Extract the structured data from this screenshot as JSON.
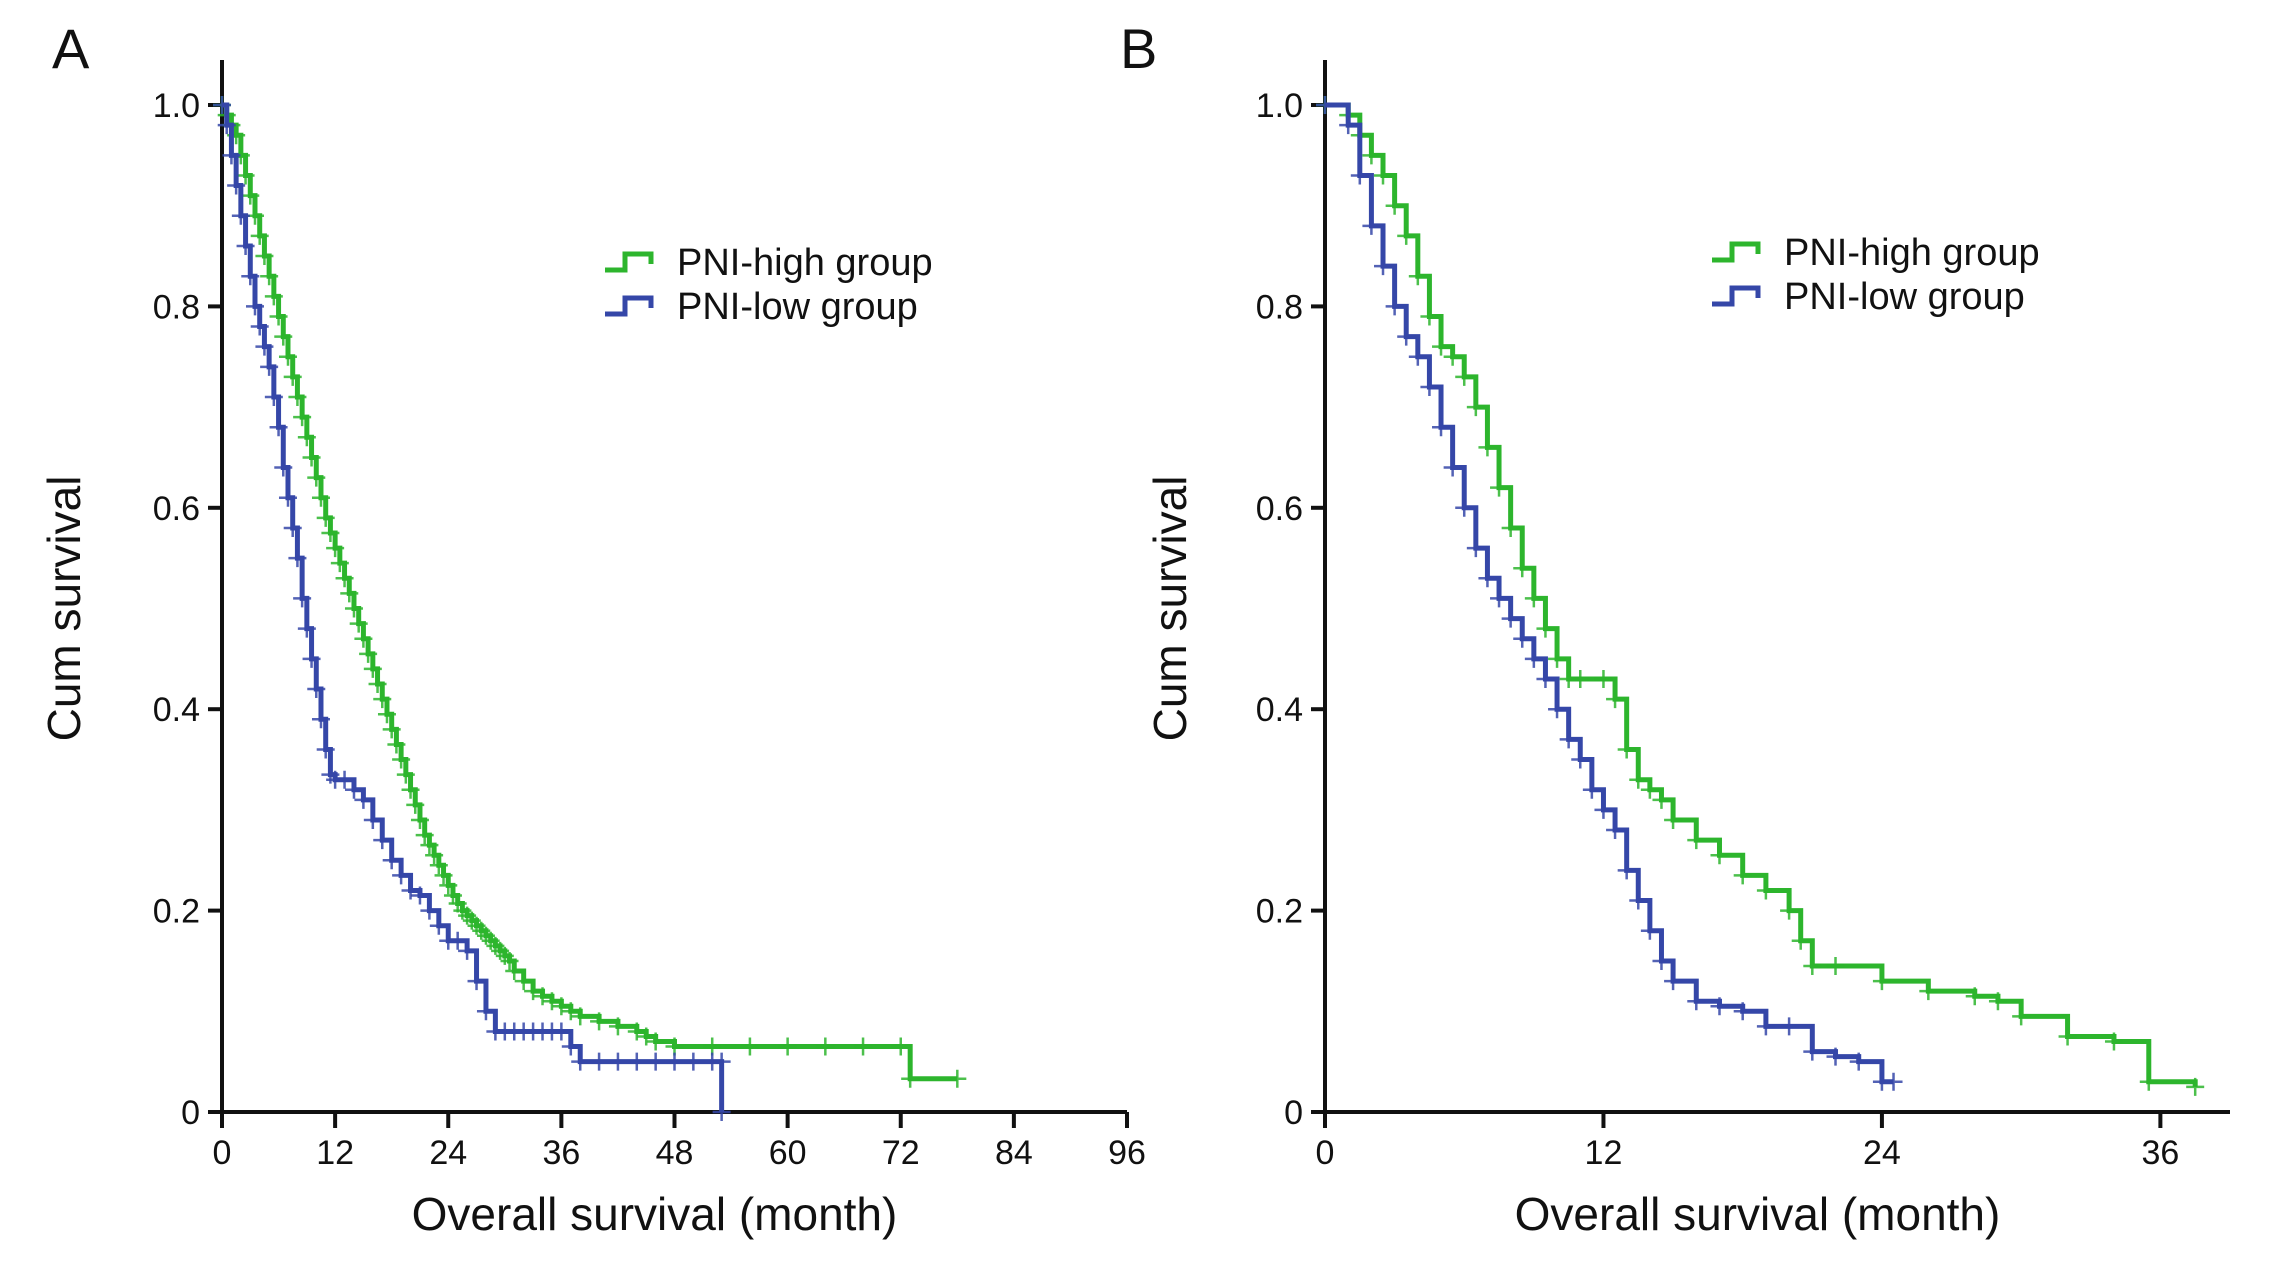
{
  "colors": {
    "high": "#2db52d",
    "low": "#3547a8",
    "axis": "#111111"
  },
  "legend": {
    "high": "PNI-high group",
    "low": "PNI-low group"
  },
  "chart_data": [
    {
      "type": "line",
      "panel_label": "A",
      "xlabel": "Overall survival (month)",
      "ylabel": "Cum survival",
      "xlim": [
        0,
        96
      ],
      "ylim": [
        0,
        1.0
      ],
      "xticks": [
        "0",
        "12",
        "24",
        "36",
        "48",
        "60",
        "72",
        "84",
        "96"
      ],
      "yticks": [
        "0",
        "0.2",
        "0.4",
        "0.6",
        "0.8",
        "1.0"
      ],
      "legend_position": "top-right",
      "series": [
        {
          "name": "PNI-high group",
          "x": [
            0,
            0.5,
            1,
            1.5,
            2,
            2.5,
            3,
            3.5,
            4,
            4.5,
            5,
            5.5,
            6,
            6.5,
            7,
            7.5,
            8,
            8.5,
            9,
            9.5,
            10,
            10.5,
            11,
            11.5,
            12,
            12.5,
            13,
            13.5,
            14,
            14.5,
            15,
            15.5,
            16,
            16.5,
            17,
            17.5,
            18,
            18.5,
            19,
            19.5,
            20,
            20.5,
            21,
            21.5,
            22,
            22.5,
            23,
            23.5,
            24,
            24.5,
            25,
            25.5,
            26,
            26.5,
            27,
            27.5,
            28,
            28.5,
            29,
            29.5,
            30,
            30.5,
            31,
            32,
            33,
            34,
            35,
            36,
            37,
            38,
            40,
            42,
            44,
            45,
            46,
            48,
            52,
            56,
            60,
            64,
            68,
            72,
            73,
            78
          ],
          "y": [
            1.0,
            0.99,
            0.98,
            0.97,
            0.95,
            0.93,
            0.91,
            0.89,
            0.87,
            0.85,
            0.83,
            0.81,
            0.79,
            0.77,
            0.75,
            0.73,
            0.71,
            0.69,
            0.67,
            0.65,
            0.63,
            0.61,
            0.59,
            0.575,
            0.56,
            0.545,
            0.53,
            0.515,
            0.5,
            0.485,
            0.47,
            0.455,
            0.44,
            0.425,
            0.41,
            0.395,
            0.38,
            0.365,
            0.35,
            0.335,
            0.32,
            0.305,
            0.29,
            0.275,
            0.265,
            0.255,
            0.245,
            0.235,
            0.225,
            0.215,
            0.207,
            0.2,
            0.195,
            0.19,
            0.185,
            0.18,
            0.175,
            0.17,
            0.165,
            0.16,
            0.155,
            0.15,
            0.14,
            0.13,
            0.12,
            0.115,
            0.11,
            0.105,
            0.1,
            0.095,
            0.09,
            0.085,
            0.08,
            0.075,
            0.07,
            0.065,
            0.065,
            0.065,
            0.065,
            0.065,
            0.065,
            0.065,
            0.033,
            0.033
          ]
        },
        {
          "name": "PNI-low group",
          "x": [
            0,
            0.5,
            1,
            1.5,
            2,
            2.5,
            3,
            3.5,
            4,
            4.5,
            5,
            5.5,
            6,
            6.5,
            7,
            7.5,
            8,
            8.5,
            9,
            9.5,
            10,
            10.5,
            11,
            11.5,
            12,
            13,
            14,
            15,
            16,
            17,
            18,
            19,
            20,
            21,
            22,
            23,
            24,
            25,
            26,
            27,
            28,
            29,
            30,
            31,
            32,
            33,
            34,
            35,
            36,
            37,
            38,
            40,
            42,
            44,
            46,
            48,
            50,
            52,
            53,
            53
          ],
          "y": [
            1.0,
            0.98,
            0.95,
            0.92,
            0.89,
            0.86,
            0.83,
            0.8,
            0.78,
            0.76,
            0.74,
            0.71,
            0.68,
            0.64,
            0.61,
            0.58,
            0.55,
            0.51,
            0.48,
            0.45,
            0.42,
            0.39,
            0.36,
            0.335,
            0.33,
            0.33,
            0.32,
            0.31,
            0.29,
            0.27,
            0.25,
            0.235,
            0.22,
            0.215,
            0.2,
            0.185,
            0.17,
            0.17,
            0.16,
            0.13,
            0.1,
            0.08,
            0.08,
            0.08,
            0.08,
            0.08,
            0.08,
            0.08,
            0.08,
            0.065,
            0.05,
            0.05,
            0.05,
            0.05,
            0.05,
            0.05,
            0.05,
            0.05,
            0.05,
            0.0
          ]
        }
      ]
    },
    {
      "type": "line",
      "panel_label": "B",
      "xlabel": "Overall survival (month)",
      "ylabel": "Cum survival",
      "xlim": [
        0,
        39
      ],
      "ylim": [
        0,
        1.0
      ],
      "xticks": [
        "0",
        "12",
        "24",
        "36"
      ],
      "xtick_values": [
        0,
        12,
        24,
        36
      ],
      "yticks": [
        "0",
        "0.2",
        "0.4",
        "0.6",
        "0.8",
        "1.0"
      ],
      "legend_position": "top-right",
      "series": [
        {
          "name": "PNI-high group",
          "x": [
            0,
            1,
            1.5,
            2,
            2.5,
            3,
            3.5,
            4,
            4.5,
            5,
            5.5,
            6,
            6.5,
            7,
            7.5,
            8,
            8.5,
            9,
            9.5,
            10,
            10.5,
            11,
            12,
            12.5,
            13,
            13.5,
            14,
            14.5,
            15,
            16,
            17,
            18,
            19,
            20,
            20.5,
            21,
            22,
            24,
            26,
            28,
            29,
            30,
            32,
            34,
            35.5,
            37.5
          ],
          "y": [
            1.0,
            0.99,
            0.97,
            0.95,
            0.93,
            0.9,
            0.87,
            0.83,
            0.79,
            0.76,
            0.75,
            0.73,
            0.7,
            0.66,
            0.62,
            0.58,
            0.54,
            0.51,
            0.48,
            0.45,
            0.43,
            0.43,
            0.43,
            0.41,
            0.36,
            0.33,
            0.32,
            0.31,
            0.29,
            0.27,
            0.255,
            0.235,
            0.22,
            0.2,
            0.17,
            0.145,
            0.145,
            0.13,
            0.12,
            0.115,
            0.11,
            0.095,
            0.075,
            0.07,
            0.03,
            0.025
          ]
        },
        {
          "name": "PNI-low group",
          "x": [
            0,
            1,
            1.5,
            2,
            2.5,
            3,
            3.5,
            4,
            4.5,
            5,
            5.5,
            6,
            6.5,
            7,
            7.5,
            8,
            8.5,
            9,
            9.5,
            10,
            10.5,
            11,
            11.5,
            12,
            12.5,
            13,
            13.5,
            14,
            14.5,
            15,
            16,
            17,
            18,
            19,
            20,
            21,
            22,
            23,
            24,
            24.5
          ],
          "y": [
            1.0,
            0.98,
            0.93,
            0.88,
            0.84,
            0.8,
            0.77,
            0.75,
            0.72,
            0.68,
            0.64,
            0.6,
            0.56,
            0.53,
            0.51,
            0.49,
            0.47,
            0.45,
            0.43,
            0.4,
            0.37,
            0.35,
            0.32,
            0.3,
            0.28,
            0.24,
            0.21,
            0.18,
            0.15,
            0.13,
            0.11,
            0.105,
            0.1,
            0.085,
            0.085,
            0.06,
            0.055,
            0.05,
            0.03,
            0.03
          ]
        }
      ]
    }
  ]
}
